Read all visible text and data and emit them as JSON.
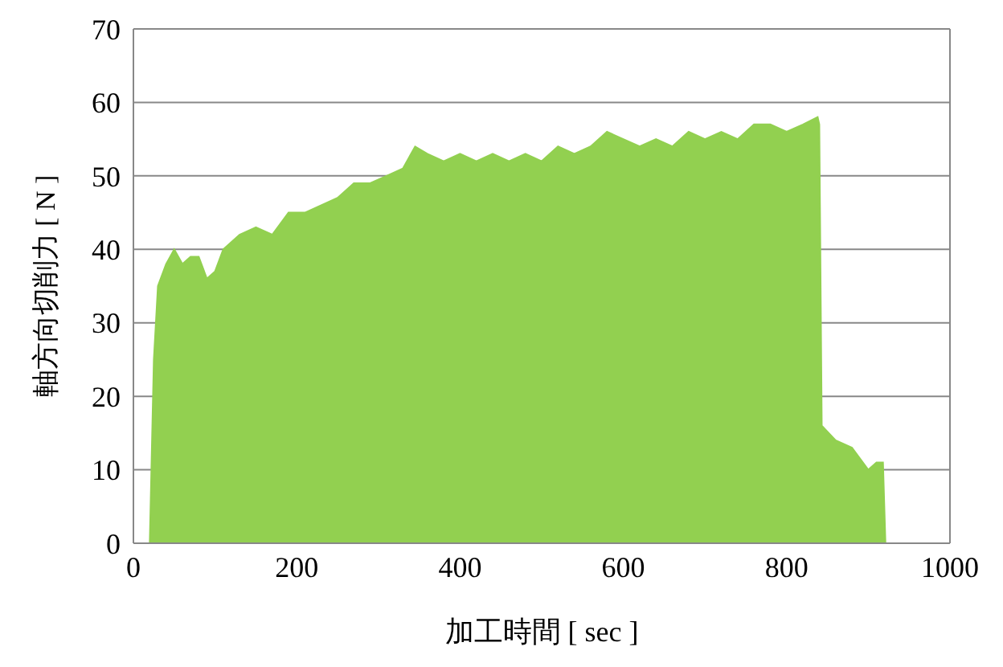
{
  "chart_data": {
    "type": "area",
    "xlabel": "加工時間 [ sec ]",
    "ylabel": "軸方向切削力 [ N ]",
    "x": [
      0,
      10,
      20,
      25,
      30,
      40,
      50,
      60,
      70,
      80,
      90,
      100,
      110,
      130,
      150,
      170,
      190,
      210,
      230,
      250,
      270,
      290,
      310,
      330,
      345,
      360,
      380,
      400,
      420,
      440,
      460,
      480,
      500,
      520,
      540,
      560,
      580,
      600,
      620,
      640,
      660,
      680,
      700,
      720,
      740,
      760,
      780,
      800,
      820,
      838,
      840,
      843,
      860,
      880,
      900,
      910,
      918,
      921,
      960
    ],
    "series": [
      {
        "color": "#92d050",
        "values": [
          0,
          0,
          0,
          25,
          35,
          38,
          40,
          38,
          39,
          39,
          36,
          37,
          40,
          42,
          43,
          42,
          45,
          45,
          46,
          47,
          49,
          49,
          50,
          51,
          54,
          53,
          52,
          53,
          52,
          53,
          52,
          53,
          52,
          54,
          53,
          54,
          56,
          55,
          54,
          55,
          54,
          56,
          55,
          56,
          55,
          57,
          57,
          56,
          57,
          58,
          57,
          16,
          14,
          13,
          10,
          11,
          11,
          0,
          0
        ]
      }
    ],
    "xlim": [
      0,
      1000
    ],
    "xticks": [
      0,
      200,
      400,
      600,
      800,
      1000
    ],
    "ylim": [
      0,
      70
    ],
    "yticks": [
      0,
      10,
      20,
      30,
      40,
      50,
      60,
      70
    ],
    "grid": "y"
  }
}
